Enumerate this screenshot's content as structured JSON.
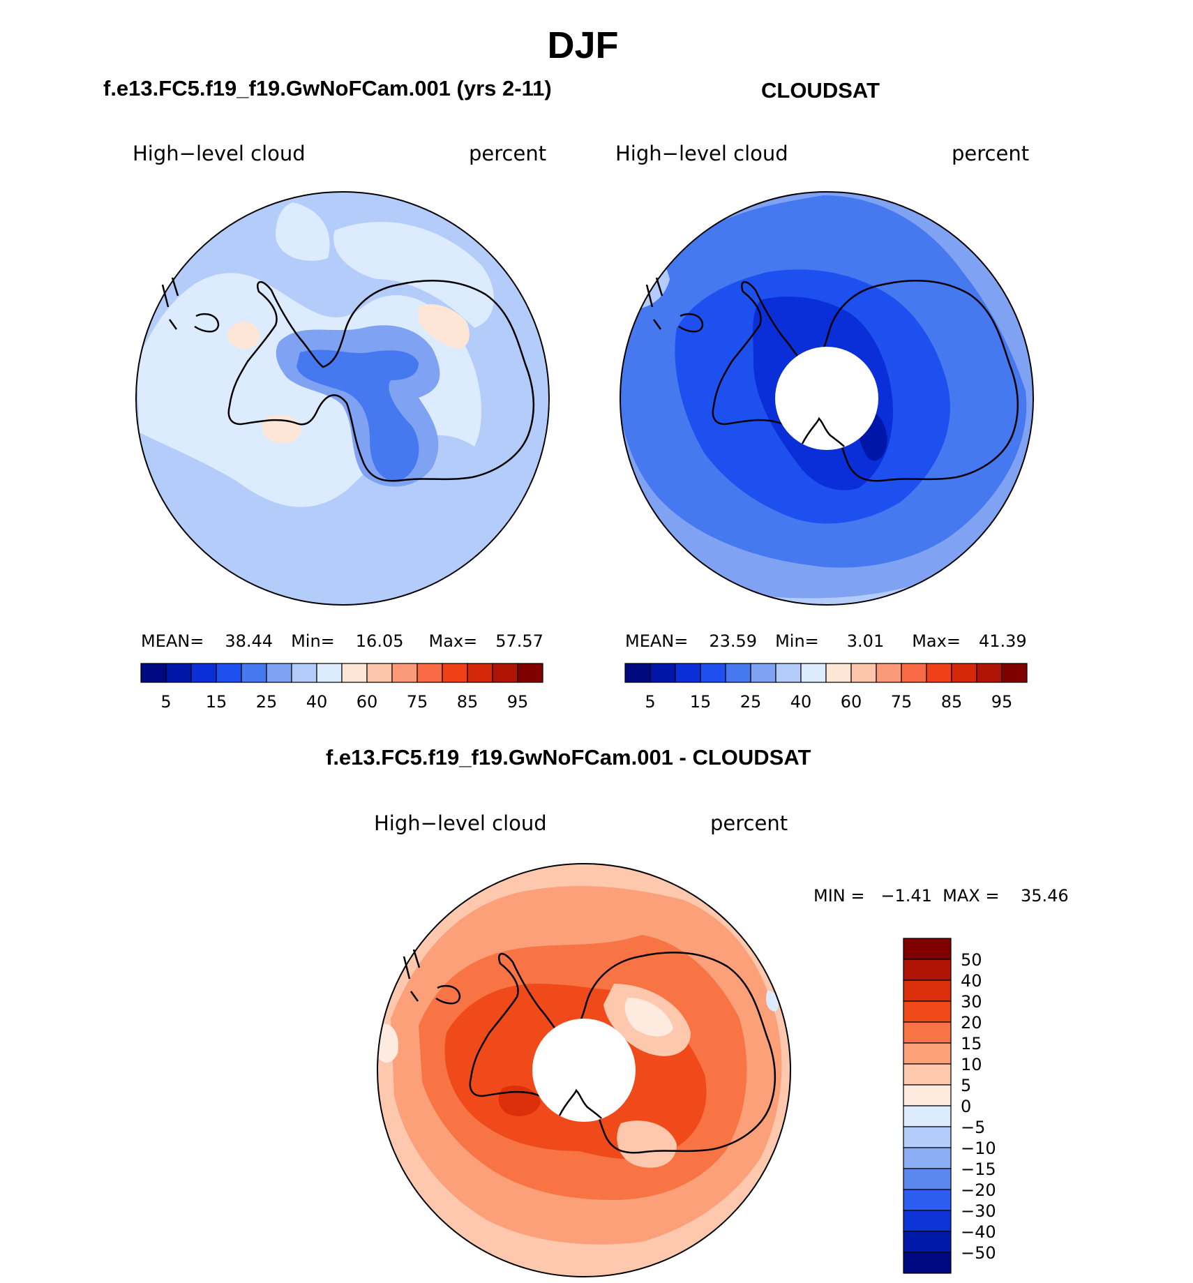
{
  "figure": {
    "season": "DJF",
    "panels": [
      {
        "id": "model",
        "title": "f.e13.FC5.f19_f19.GwNoFCam.001 (yrs 2-11)",
        "left_label": "High−level cloud",
        "right_label": "percent",
        "stats": {
          "mean_label": "MEAN=",
          "mean": "38.44",
          "min_label": "Min=",
          "min": "16.05",
          "max_label": "Max=",
          "max": "57.57"
        },
        "colorbar_ticks": [
          "5",
          "15",
          "25",
          "40",
          "60",
          "75",
          "85",
          "95"
        ]
      },
      {
        "id": "obs",
        "title": "CLOUDSAT",
        "left_label": "High−level cloud",
        "right_label": "percent",
        "stats": {
          "mean_label": "MEAN=",
          "mean": "23.59",
          "min_label": "Min=",
          "min": "3.01",
          "max_label": "Max=",
          "max": "41.39"
        },
        "colorbar_ticks": [
          "5",
          "15",
          "25",
          "40",
          "60",
          "75",
          "85",
          "95"
        ]
      },
      {
        "id": "diff",
        "title": "f.e13.FC5.f19_f19.GwNoFCam.001 - CLOUDSAT",
        "left_label": "High−level cloud",
        "right_label": "percent",
        "stats_text": "MIN =   −1.41  MAX =    35.46",
        "colorbar_ticks": [
          "50",
          "40",
          "30",
          "20",
          "15",
          "10",
          "5",
          "0",
          "−5",
          "−10",
          "−15",
          "−20",
          "−30",
          "−40",
          "−50"
        ]
      }
    ],
    "palettes": {
      "abs": [
        "#000a80",
        "#0016a8",
        "#0a2ed8",
        "#1e50f0",
        "#4678f0",
        "#7fa2f2",
        "#b4ccfa",
        "#dcecfe",
        "#fee6d6",
        "#fcc4aa",
        "#fb9a78",
        "#f86a44",
        "#f04018",
        "#d42808",
        "#b01404",
        "#800000"
      ],
      "diff": [
        "#800000",
        "#b01404",
        "#dc300c",
        "#f04a1a",
        "#f87444",
        "#fca07a",
        "#fdc8ae",
        "#feeade",
        "#dcecfe",
        "#b4ccfa",
        "#8cacf4",
        "#5a88ee",
        "#2c5cf0",
        "#0c34d6",
        "#0018a8",
        "#000a80"
      ]
    }
  }
}
